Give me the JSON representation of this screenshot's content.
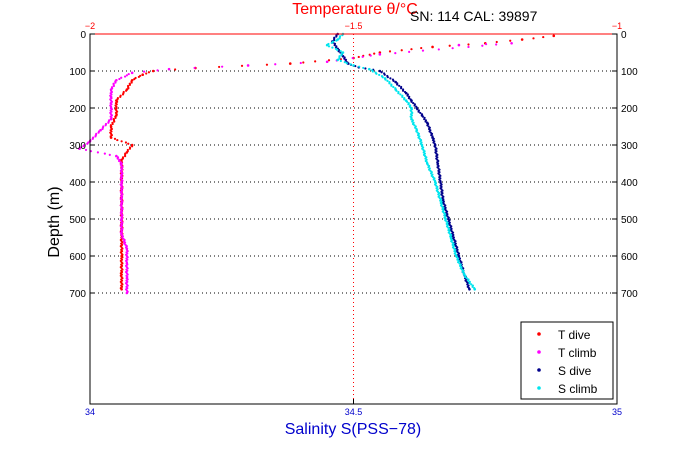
{
  "chart_data": {
    "type": "scatter",
    "title_top": "Temperature θ/°C",
    "annotation": "SN: 114  CAL: 39897",
    "xlabel": "Salinity S(PSS−78)",
    "ylabel": "Depth (m)",
    "x_bottom": {
      "range": [
        34,
        35
      ],
      "ticks": [
        "34",
        "34.5",
        "35"
      ],
      "color": "#0000cc"
    },
    "x_top": {
      "range": [
        -2,
        -1
      ],
      "ticks": [
        "−2",
        "−1.5",
        "−1"
      ],
      "color": "#ff0000"
    },
    "y": {
      "range": [
        0,
        1000
      ],
      "reversed": true,
      "ticks": [
        0,
        100,
        200,
        300,
        400,
        500,
        600,
        700
      ]
    },
    "gridlines": "dotted at labeled depths and x mid ticks",
    "legend_position": "bottom-right",
    "series": [
      {
        "name": "T dive",
        "axis": "top",
        "color": "#ff0000",
        "points": [
          [
            -1.12,
            5
          ],
          [
            -1.18,
            15
          ],
          [
            -1.25,
            25
          ],
          [
            -1.35,
            35
          ],
          [
            -1.45,
            50
          ],
          [
            -1.5,
            65
          ],
          [
            -1.62,
            80
          ],
          [
            -1.8,
            92
          ],
          [
            -1.88,
            100
          ],
          [
            -1.9,
            110
          ],
          [
            -1.92,
            125
          ],
          [
            -1.93,
            150
          ],
          [
            -1.95,
            180
          ],
          [
            -1.95,
            200
          ],
          [
            -1.95,
            220
          ],
          [
            -1.96,
            250
          ],
          [
            -1.96,
            280
          ],
          [
            -1.92,
            300
          ],
          [
            -1.93,
            320
          ],
          [
            -1.94,
            340
          ],
          [
            -1.94,
            360
          ],
          [
            -1.94,
            400
          ],
          [
            -1.94,
            430
          ],
          [
            -1.94,
            460
          ],
          [
            -1.94,
            480
          ],
          [
            -1.94,
            500
          ],
          [
            -1.94,
            550
          ],
          [
            -1.94,
            600
          ],
          [
            -1.94,
            650
          ],
          [
            -1.94,
            690
          ]
        ]
      },
      {
        "name": "T climb",
        "axis": "top",
        "color": "#ff00ff",
        "points": [
          [
            -1.3,
            30
          ],
          [
            -1.2,
            25
          ],
          [
            -1.45,
            55
          ],
          [
            -1.55,
            75
          ],
          [
            -1.7,
            85
          ],
          [
            -1.85,
            95
          ],
          [
            -1.92,
            105
          ],
          [
            -1.95,
            125
          ],
          [
            -1.96,
            150
          ],
          [
            -1.96,
            170
          ],
          [
            -1.96,
            200
          ],
          [
            -1.96,
            230
          ],
          [
            -1.98,
            260
          ],
          [
            -2.0,
            290
          ],
          [
            -2.02,
            310
          ],
          [
            -1.95,
            330
          ],
          [
            -1.94,
            350
          ],
          [
            -1.94,
            380
          ],
          [
            -1.94,
            410
          ],
          [
            -1.94,
            440
          ],
          [
            -1.94,
            470
          ],
          [
            -1.94,
            500
          ],
          [
            -1.94,
            540
          ],
          [
            -1.93,
            580
          ],
          [
            -1.93,
            620
          ],
          [
            -1.93,
            660
          ],
          [
            -1.93,
            700
          ]
        ]
      },
      {
        "name": "S dive",
        "axis": "bottom",
        "color": "#00008b",
        "points": [
          [
            34.47,
            0
          ],
          [
            34.46,
            20
          ],
          [
            34.47,
            40
          ],
          [
            34.48,
            60
          ],
          [
            34.49,
            80
          ],
          [
            34.51,
            90
          ],
          [
            34.55,
            100
          ],
          [
            34.58,
            130
          ],
          [
            34.6,
            160
          ],
          [
            34.61,
            180
          ],
          [
            34.62,
            200
          ],
          [
            34.63,
            220
          ],
          [
            34.64,
            240
          ],
          [
            34.65,
            280
          ],
          [
            34.655,
            300
          ],
          [
            34.66,
            350
          ],
          [
            34.665,
            400
          ],
          [
            34.67,
            450
          ],
          [
            34.68,
            500
          ],
          [
            34.69,
            550
          ],
          [
            34.7,
            600
          ],
          [
            34.71,
            650
          ],
          [
            34.72,
            690
          ]
        ]
      },
      {
        "name": "S climb",
        "axis": "bottom",
        "color": "#00e5ee",
        "points": [
          [
            34.48,
            0
          ],
          [
            34.47,
            15
          ],
          [
            34.45,
            30
          ],
          [
            34.48,
            50
          ],
          [
            34.47,
            70
          ],
          [
            34.5,
            85
          ],
          [
            34.53,
            95
          ],
          [
            34.56,
            120
          ],
          [
            34.58,
            150
          ],
          [
            34.6,
            180
          ],
          [
            34.61,
            200
          ],
          [
            34.61,
            230
          ],
          [
            34.62,
            260
          ],
          [
            34.63,
            300
          ],
          [
            34.64,
            350
          ],
          [
            34.655,
            400
          ],
          [
            34.665,
            450
          ],
          [
            34.675,
            500
          ],
          [
            34.685,
            550
          ],
          [
            34.695,
            600
          ],
          [
            34.71,
            650
          ],
          [
            34.73,
            690
          ]
        ]
      }
    ]
  },
  "colors": {
    "axes": "#000000",
    "top_axis": "#ff0000",
    "bottom_axis": "#0000cc",
    "grid": "#000000",
    "mid_grid": "#ff0000"
  }
}
